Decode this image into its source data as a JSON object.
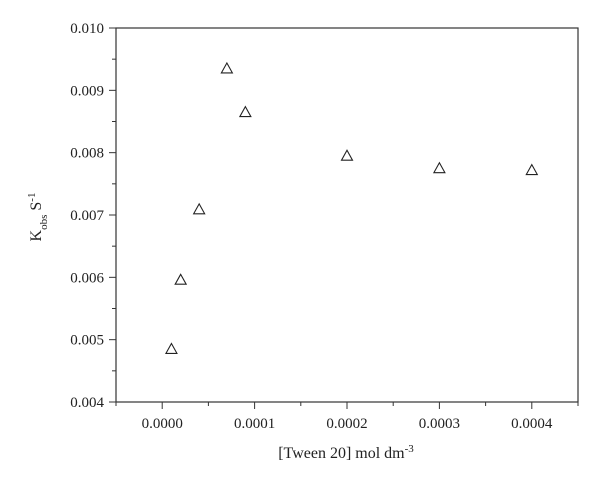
{
  "chart_data": {
    "type": "scatter",
    "title": "",
    "xlabel": {
      "base": "[Tween 20] mol dm",
      "sup": "-3"
    },
    "ylabel": {
      "base": "K",
      "sub": "obs",
      "mid": " S",
      "sup": "-1"
    },
    "xlim": [
      -5e-05,
      0.00045
    ],
    "ylim": [
      0.004,
      0.01
    ],
    "x_ticks": [
      0.0,
      0.0001,
      0.0002,
      0.0003,
      0.0004
    ],
    "x_tick_labels": [
      "0.0000",
      "0.0001",
      "0.0002",
      "0.0003",
      "0.0004"
    ],
    "y_ticks": [
      0.004,
      0.005,
      0.006,
      0.007,
      0.008,
      0.009,
      0.01
    ],
    "y_tick_labels": [
      "0.004",
      "0.005",
      "0.006",
      "0.007",
      "0.008",
      "0.009",
      "0.010"
    ],
    "grid": false,
    "marker": "open-triangle",
    "series": [
      {
        "x": [
          1e-05,
          2e-05,
          4e-05,
          7e-05,
          9e-05,
          0.0002,
          0.0003,
          0.0004
        ],
        "y": [
          0.00485,
          0.00596,
          0.00709,
          0.00935,
          0.00865,
          0.00795,
          0.00775,
          0.00772
        ]
      }
    ]
  }
}
